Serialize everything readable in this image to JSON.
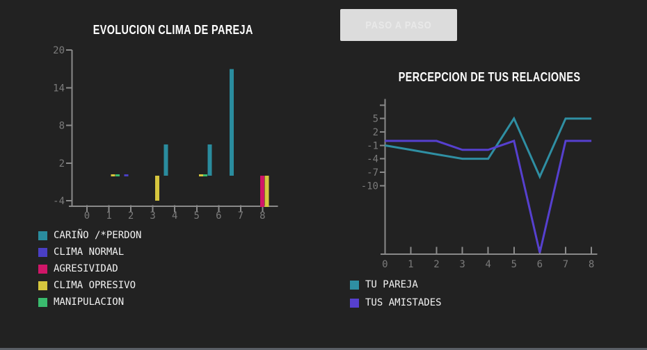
{
  "ui": {
    "background_color": "#222222",
    "button": {
      "label": "PASO A PASO",
      "background": "#dcdcdc",
      "text_color": "#e9e9e9"
    }
  },
  "chart_data": [
    {
      "type": "bar",
      "title": "EVOLUCION CLIMA DE PAREJA",
      "categories": [
        "0",
        "1",
        "2",
        "3",
        "4",
        "5",
        "6",
        "7",
        "8"
      ],
      "series": [
        {
          "name": "CARIÑO /*PERDON",
          "color": "#2a8c9e",
          "values": [
            null,
            null,
            null,
            null,
            5,
            null,
            5,
            17,
            null
          ]
        },
        {
          "name": "CLIMA NORMAL",
          "color": "#4a3fc4",
          "values": [
            null,
            null,
            0,
            null,
            null,
            null,
            null,
            null,
            null
          ]
        },
        {
          "name": "AGRESIVIDAD",
          "color": "#d01668",
          "values": [
            null,
            null,
            null,
            null,
            null,
            null,
            null,
            null,
            -5
          ]
        },
        {
          "name": "CLIMA OPRESIVO",
          "color": "#d6c63e",
          "values": [
            null,
            0,
            null,
            -4,
            null,
            0,
            null,
            null,
            -5
          ]
        },
        {
          "name": "MANIPULACION",
          "color": "#3abb6e",
          "values": [
            null,
            0,
            null,
            null,
            null,
            0,
            null,
            null,
            null
          ]
        }
      ],
      "y_ticks": [
        20,
        14,
        8,
        2,
        -4
      ],
      "ylim": [
        -4.9,
        20
      ],
      "xlabel": "",
      "ylabel": "",
      "grid": false,
      "legend_position": "below-left"
    },
    {
      "type": "line",
      "title": "PERCEPCION DE TUS RELACIONES",
      "x": [
        0,
        1,
        2,
        3,
        4,
        5,
        6,
        7,
        8
      ],
      "series": [
        {
          "name": "TU PAREJA",
          "color": "#2f8fa3",
          "values": [
            -1,
            -2,
            -3,
            -4,
            -4,
            5,
            -8,
            5,
            5
          ]
        },
        {
          "name": "TUS AMISTADES",
          "color": "#5640cf",
          "values": [
            0,
            0,
            0,
            -2,
            -2,
            0,
            -25,
            0,
            0
          ]
        }
      ],
      "y_ticks": [
        5,
        2,
        -1,
        -4,
        -7,
        -10
      ],
      "ylim": [
        -25.5,
        8
      ],
      "xlabel": "",
      "ylabel": "",
      "grid": false,
      "legend_position": "below-left"
    }
  ]
}
